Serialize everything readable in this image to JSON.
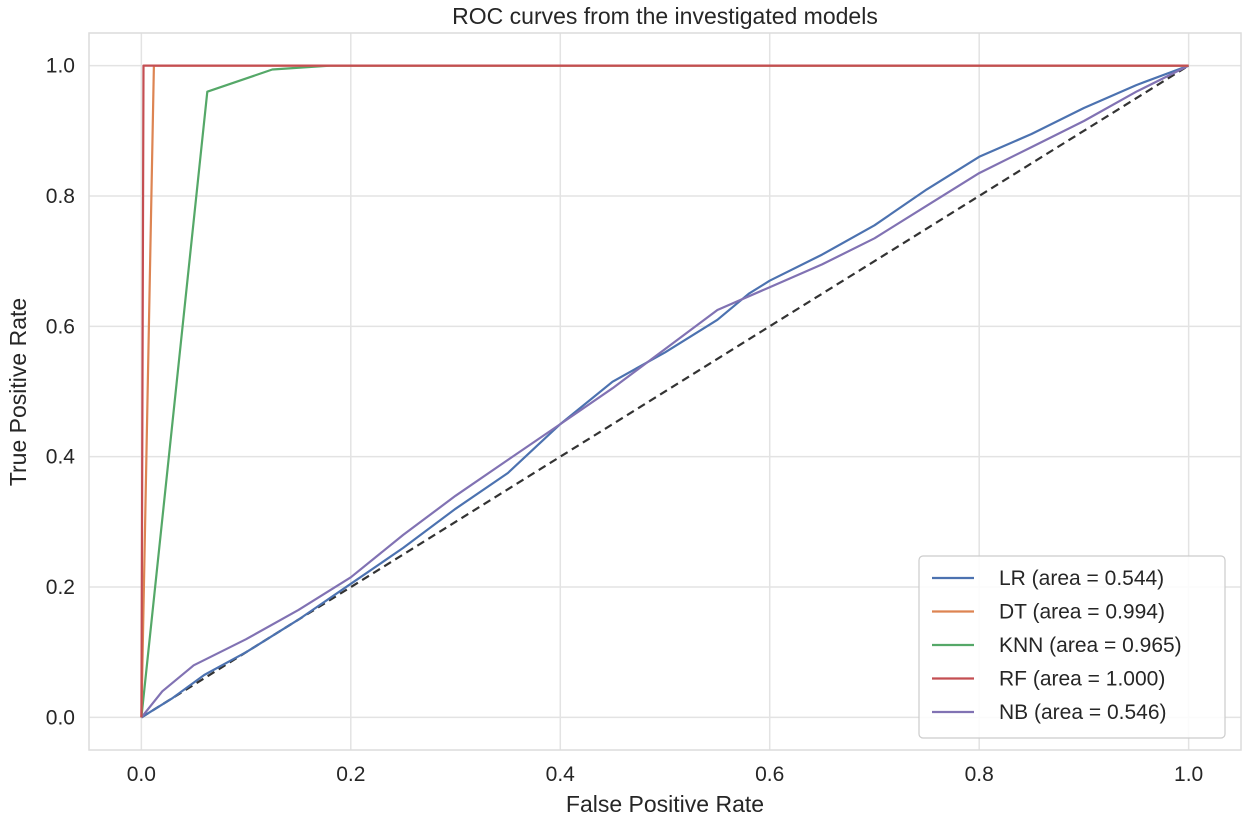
{
  "chart_data": {
    "type": "line",
    "title": "ROC curves from the investigated models",
    "xlabel": "False Positive Rate",
    "ylabel": "True Positive Rate",
    "xlim": [
      -0.05,
      1.05
    ],
    "ylim": [
      -0.05,
      1.05
    ],
    "xticks": [
      0.0,
      0.2,
      0.4,
      0.6,
      0.8,
      1.0
    ],
    "xtick_labels": [
      "0.0",
      "0.2",
      "0.4",
      "0.6",
      "0.8",
      "1.0"
    ],
    "yticks": [
      0.0,
      0.2,
      0.4,
      0.6,
      0.8,
      1.0
    ],
    "ytick_labels": [
      "0.0",
      "0.2",
      "0.4",
      "0.6",
      "0.8",
      "1.0"
    ],
    "grid": true,
    "legend_position": "lower-right",
    "series": [
      {
        "name": "LR (area = 0.544)",
        "color": "#4c72b0",
        "x": [
          0.0,
          0.03,
          0.06,
          0.1,
          0.15,
          0.2,
          0.25,
          0.3,
          0.35,
          0.4,
          0.45,
          0.5,
          0.55,
          0.58,
          0.6,
          0.65,
          0.7,
          0.75,
          0.8,
          0.85,
          0.9,
          0.95,
          1.0
        ],
        "y": [
          0.0,
          0.03,
          0.065,
          0.1,
          0.15,
          0.205,
          0.26,
          0.32,
          0.375,
          0.45,
          0.515,
          0.56,
          0.61,
          0.65,
          0.67,
          0.71,
          0.755,
          0.81,
          0.86,
          0.895,
          0.935,
          0.97,
          1.0
        ]
      },
      {
        "name": "DT (area = 0.994)",
        "color": "#dd8452",
        "x": [
          0.0,
          0.012,
          1.0
        ],
        "y": [
          0.0,
          1.0,
          1.0
        ]
      },
      {
        "name": "KNN (area = 0.965)",
        "color": "#55a868",
        "x": [
          0.0,
          0.063,
          0.125,
          0.18,
          1.0
        ],
        "y": [
          0.0,
          0.96,
          0.994,
          1.0,
          1.0
        ]
      },
      {
        "name": "RF (area = 1.000)",
        "color": "#c44e52",
        "x": [
          0.0,
          0.002,
          1.0
        ],
        "y": [
          0.0,
          1.0,
          1.0
        ]
      },
      {
        "name": "NB (area = 0.546)",
        "color": "#8172b3",
        "x": [
          0.0,
          0.02,
          0.05,
          0.1,
          0.15,
          0.2,
          0.25,
          0.3,
          0.35,
          0.4,
          0.45,
          0.5,
          0.55,
          0.6,
          0.65,
          0.7,
          0.75,
          0.8,
          0.85,
          0.9,
          0.95,
          1.0
        ],
        "y": [
          0.0,
          0.04,
          0.08,
          0.12,
          0.165,
          0.215,
          0.28,
          0.34,
          0.395,
          0.45,
          0.505,
          0.565,
          0.625,
          0.66,
          0.695,
          0.735,
          0.785,
          0.835,
          0.875,
          0.915,
          0.96,
          1.0
        ]
      },
      {
        "name": "",
        "color": "#333333",
        "dashed": true,
        "x": [
          0.0,
          1.0
        ],
        "y": [
          0.0,
          1.0
        ]
      }
    ]
  }
}
